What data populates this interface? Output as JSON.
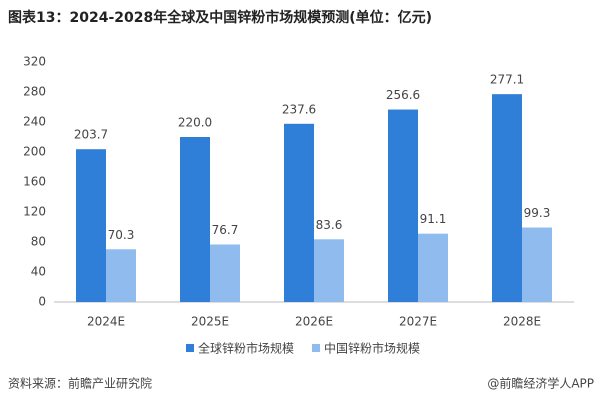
{
  "chart_data": {
    "type": "bar",
    "title": "图表13：2024-2028年全球及中国锌粉市场规模预测(单位：亿元)",
    "categories": [
      "2024E",
      "2025E",
      "2026E",
      "2027E",
      "2028E"
    ],
    "series": [
      {
        "name": "全球锌粉市场规模",
        "color": "#2f7ed8",
        "values": [
          203.7,
          220.0,
          237.6,
          256.6,
          277.1
        ],
        "value_labels": [
          "203.7",
          "220.0",
          "237.6",
          "256.6",
          "277.1"
        ]
      },
      {
        "name": "中国锌粉市场规模",
        "color": "#8fbbef",
        "values": [
          70.3,
          76.7,
          83.6,
          91.1,
          99.3
        ],
        "value_labels": [
          "70.3",
          "76.7",
          "83.6",
          "91.1",
          "99.3"
        ]
      }
    ],
    "ylim": [
      0,
      320
    ],
    "yticks": [
      0,
      40,
      80,
      120,
      160,
      200,
      240,
      280,
      320
    ],
    "grid": false,
    "legend": "bottom",
    "source": "资料来源：前瞻产业研究院",
    "credit": "@前瞻经济学人APP"
  }
}
